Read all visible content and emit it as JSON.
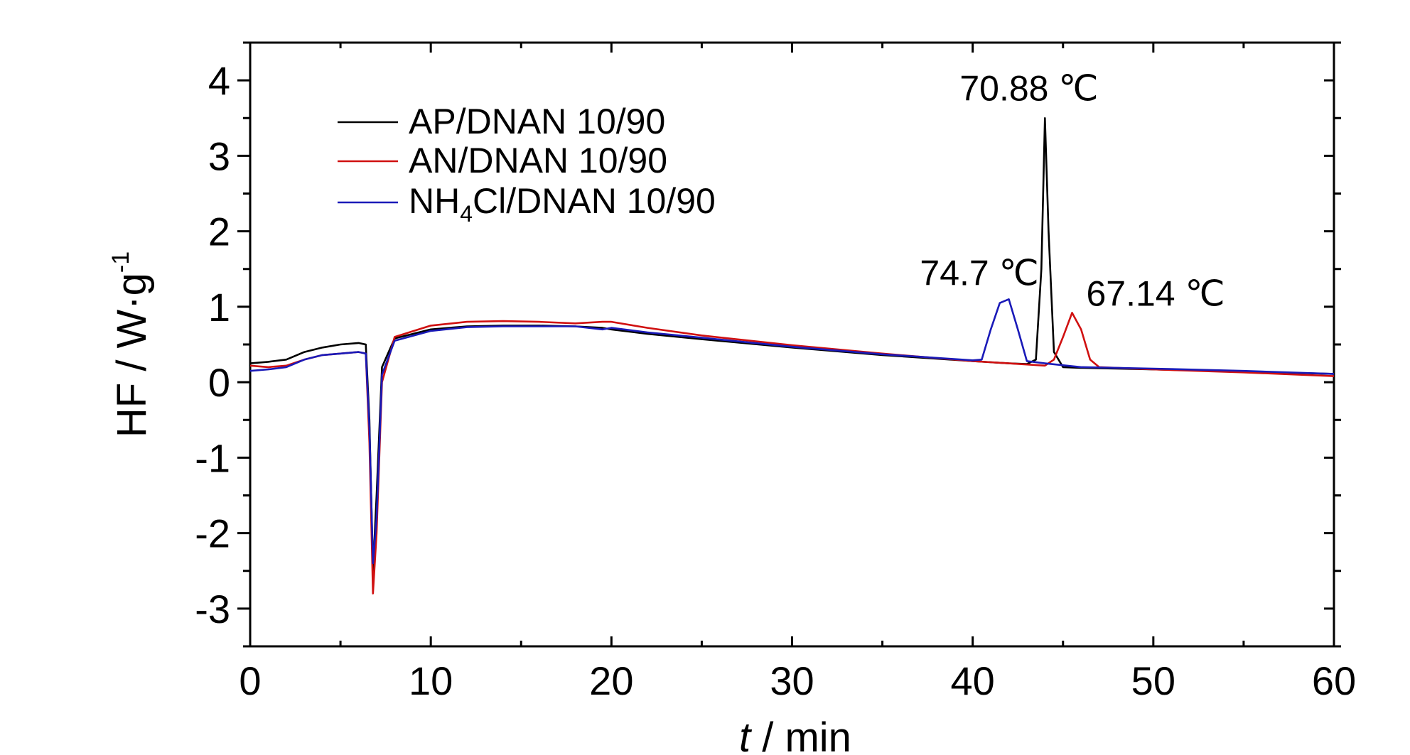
{
  "chart_data": {
    "type": "line",
    "xlabel_var": "t",
    "xlabel_unit": " / min",
    "ylabel_main": "HF / W·g",
    "ylabel_sup": "-1",
    "xlim": [
      0,
      60
    ],
    "ylim": [
      -3.5,
      4.5
    ],
    "xticks": [
      0,
      10,
      20,
      30,
      40,
      50,
      60
    ],
    "yticks": [
      -3,
      -2,
      -1,
      0,
      1,
      2,
      3,
      4
    ],
    "grid": false,
    "legend_position": "top-left",
    "series": [
      {
        "name": "AP/DNAN 10/90",
        "color": "#000000",
        "points": [
          [
            0,
            0.25
          ],
          [
            1,
            0.27
          ],
          [
            2,
            0.3
          ],
          [
            3,
            0.4
          ],
          [
            4,
            0.46
          ],
          [
            5,
            0.5
          ],
          [
            6,
            0.52
          ],
          [
            6.4,
            0.5
          ],
          [
            6.6,
            -0.5
          ],
          [
            6.8,
            -2.5
          ],
          [
            7.0,
            -1.5
          ],
          [
            7.3,
            0.2
          ],
          [
            8,
            0.58
          ],
          [
            10,
            0.7
          ],
          [
            12,
            0.74
          ],
          [
            14,
            0.75
          ],
          [
            16,
            0.75
          ],
          [
            18,
            0.74
          ],
          [
            19.5,
            0.72
          ],
          [
            20,
            0.7
          ],
          [
            22,
            0.64
          ],
          [
            25,
            0.57
          ],
          [
            30,
            0.46
          ],
          [
            35,
            0.36
          ],
          [
            40,
            0.28
          ],
          [
            42,
            0.25
          ],
          [
            43,
            0.24
          ],
          [
            43.5,
            0.3
          ],
          [
            43.8,
            1.5
          ],
          [
            44.0,
            3.5
          ],
          [
            44.2,
            2.0
          ],
          [
            44.5,
            0.4
          ],
          [
            45,
            0.2
          ],
          [
            46,
            0.19
          ],
          [
            50,
            0.17
          ],
          [
            55,
            0.14
          ],
          [
            60,
            0.11
          ]
        ]
      },
      {
        "name": "AN/DNAN 10/90",
        "color": "#d01010",
        "points": [
          [
            0,
            0.22
          ],
          [
            1,
            0.2
          ],
          [
            2,
            0.22
          ],
          [
            3,
            0.3
          ],
          [
            4,
            0.36
          ],
          [
            5,
            0.38
          ],
          [
            6,
            0.4
          ],
          [
            6.4,
            0.38
          ],
          [
            6.6,
            -0.8
          ],
          [
            6.8,
            -2.8
          ],
          [
            7.0,
            -2.0
          ],
          [
            7.3,
            0.0
          ],
          [
            8,
            0.6
          ],
          [
            10,
            0.75
          ],
          [
            12,
            0.8
          ],
          [
            14,
            0.81
          ],
          [
            16,
            0.8
          ],
          [
            18,
            0.78
          ],
          [
            19.5,
            0.8
          ],
          [
            20,
            0.8
          ],
          [
            22,
            0.72
          ],
          [
            25,
            0.62
          ],
          [
            30,
            0.49
          ],
          [
            35,
            0.38
          ],
          [
            40,
            0.28
          ],
          [
            42,
            0.25
          ],
          [
            44,
            0.22
          ],
          [
            44.5,
            0.3
          ],
          [
            45,
            0.6
          ],
          [
            45.5,
            0.92
          ],
          [
            46,
            0.7
          ],
          [
            46.5,
            0.3
          ],
          [
            47,
            0.2
          ],
          [
            50,
            0.17
          ],
          [
            55,
            0.13
          ],
          [
            60,
            0.08
          ]
        ]
      },
      {
        "name": "NH4Cl/DNAN 10/90",
        "color": "#1a1ab8",
        "points": [
          [
            0,
            0.15
          ],
          [
            1,
            0.17
          ],
          [
            2,
            0.2
          ],
          [
            3,
            0.3
          ],
          [
            4,
            0.36
          ],
          [
            5,
            0.38
          ],
          [
            6,
            0.4
          ],
          [
            6.4,
            0.38
          ],
          [
            6.6,
            -0.6
          ],
          [
            6.8,
            -2.4
          ],
          [
            7.0,
            -1.8
          ],
          [
            7.3,
            0.1
          ],
          [
            8,
            0.55
          ],
          [
            10,
            0.68
          ],
          [
            12,
            0.73
          ],
          [
            14,
            0.74
          ],
          [
            16,
            0.74
          ],
          [
            18,
            0.74
          ],
          [
            19.5,
            0.7
          ],
          [
            20,
            0.72
          ],
          [
            22,
            0.66
          ],
          [
            25,
            0.59
          ],
          [
            30,
            0.47
          ],
          [
            35,
            0.37
          ],
          [
            40,
            0.29
          ],
          [
            40.5,
            0.3
          ],
          [
            41,
            0.7
          ],
          [
            41.5,
            1.05
          ],
          [
            42,
            1.1
          ],
          [
            42.5,
            0.7
          ],
          [
            43,
            0.28
          ],
          [
            44,
            0.25
          ],
          [
            46,
            0.2
          ],
          [
            50,
            0.18
          ],
          [
            55,
            0.15
          ],
          [
            60,
            0.11
          ]
        ]
      }
    ],
    "legend_entries": [
      "AP/DNAN 10/90",
      "AN/DNAN 10/90",
      "NH4Cl/DNAN 10/90"
    ],
    "annotations": [
      {
        "text": "70.88 ℃",
        "x": 44.0,
        "y": 3.5
      },
      {
        "text": "74.7 ℃",
        "x": 41.8,
        "y": 1.1
      },
      {
        "text": "67.14 ℃",
        "x": 45.5,
        "y": 0.92
      }
    ]
  }
}
